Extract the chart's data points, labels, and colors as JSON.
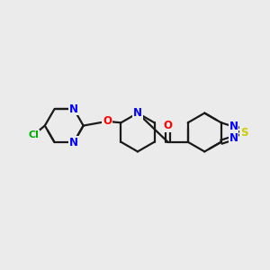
{
  "bg_color": "#ebebeb",
  "bond_color": "#1a1a1a",
  "bond_width": 1.6,
  "atom_colors": {
    "N": "#0000ff",
    "O": "#ff0000",
    "S": "#cccc00",
    "Cl": "#00aa00",
    "C": "#1a1a1a"
  },
  "font_size_atom": 8.5
}
